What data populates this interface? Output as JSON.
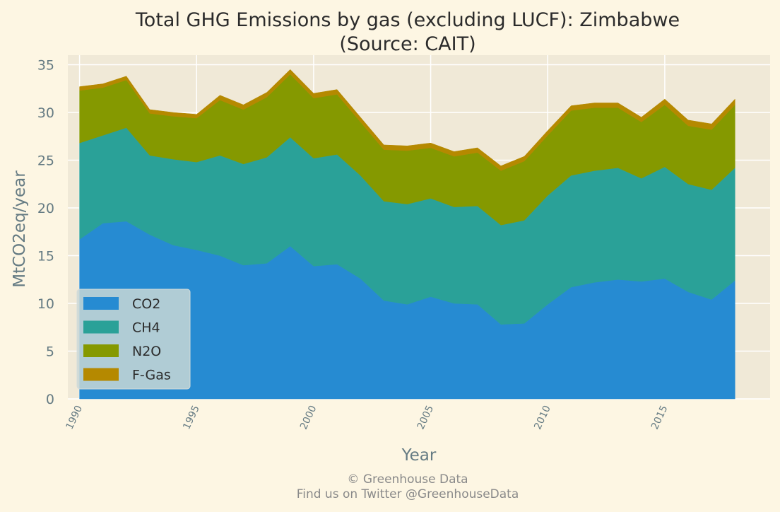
{
  "chart_data": {
    "type": "area",
    "stacked": true,
    "title_line1": "Total GHG Emissions by gas (excluding LUCF): Zimbabwe",
    "title_line2": "(Source: CAIT)",
    "xlabel": "Year",
    "ylabel": "MtCO2eq/year",
    "xlim": [
      1989.5,
      2019.5
    ],
    "ylim": [
      0,
      36
    ],
    "x_ticks": [
      "1990",
      "1995",
      "2000",
      "2005",
      "2010",
      "2015"
    ],
    "y_ticks": [
      "0",
      "5",
      "10",
      "15",
      "20",
      "25",
      "30",
      "35"
    ],
    "grid": true,
    "legend_position": "lower-left",
    "x": [
      1990,
      1991,
      1992,
      1993,
      1994,
      1995,
      1996,
      1997,
      1998,
      1999,
      2000,
      2001,
      2002,
      2003,
      2004,
      2005,
      2006,
      2007,
      2008,
      2009,
      2010,
      2011,
      2012,
      2013,
      2014,
      2015,
      2016,
      2017,
      2018
    ],
    "series": [
      {
        "name": "CO2",
        "color": "#268bd2",
        "values": [
          16.7,
          18.4,
          18.6,
          17.2,
          16.1,
          15.6,
          15.0,
          14.0,
          14.2,
          16.0,
          13.9,
          14.1,
          12.6,
          10.3,
          9.9,
          10.7,
          10.0,
          9.9,
          7.8,
          7.9,
          9.9,
          11.7,
          12.2,
          12.5,
          12.3,
          12.6,
          11.2,
          10.4,
          12.4
        ]
      },
      {
        "name": "CH4",
        "color": "#2aa198",
        "values": [
          10.1,
          9.2,
          9.8,
          8.3,
          9.0,
          9.2,
          10.5,
          10.6,
          11.1,
          11.4,
          11.3,
          11.5,
          10.8,
          10.4,
          10.5,
          10.3,
          10.1,
          10.3,
          10.4,
          10.8,
          11.4,
          11.7,
          11.7,
          11.7,
          10.8,
          11.7,
          11.3,
          11.5,
          11.8
        ]
      },
      {
        "name": "N2O",
        "color": "#859900",
        "values": [
          5.5,
          5.0,
          5.0,
          4.4,
          4.5,
          4.6,
          5.8,
          5.7,
          6.3,
          6.6,
          6.3,
          6.3,
          5.6,
          5.4,
          5.6,
          5.3,
          5.3,
          5.6,
          5.7,
          6.2,
          6.3,
          6.8,
          6.6,
          6.3,
          5.9,
          6.5,
          6.1,
          6.3,
          6.6
        ]
      },
      {
        "name": "F-Gas",
        "color": "#b58900",
        "values": [
          0.4,
          0.4,
          0.4,
          0.4,
          0.4,
          0.4,
          0.5,
          0.5,
          0.5,
          0.5,
          0.5,
          0.5,
          0.5,
          0.5,
          0.5,
          0.5,
          0.5,
          0.5,
          0.5,
          0.5,
          0.5,
          0.5,
          0.5,
          0.5,
          0.5,
          0.6,
          0.6,
          0.6,
          0.6
        ]
      }
    ]
  },
  "footer": {
    "line1": "© Greenhouse Data",
    "line2": "Find us on Twitter @GreenhouseData"
  },
  "colors": {
    "page_background": "#fdf6e3",
    "plot_background": "#f0e9d7",
    "grid": "#ffffff",
    "legend_background": "#c9d7d6"
  }
}
